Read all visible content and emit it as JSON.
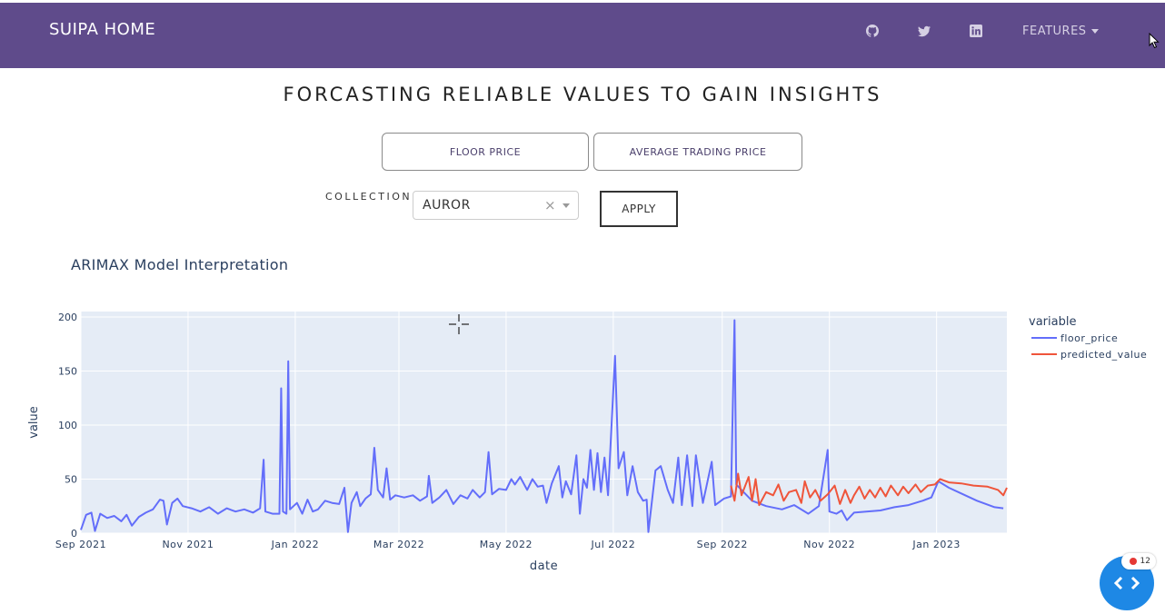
{
  "nav": {
    "brand": "SUIPA HOME",
    "icons": [
      "github-icon",
      "twitter-icon",
      "linkedin-icon"
    ],
    "features_label": "FEATURES",
    "background": "#5f4b8b"
  },
  "page": {
    "title": "FORCASTING RELIABLE VALUES TO GAIN INSIGHTS",
    "tabs": [
      "FLOOR PRICE",
      "AVERAGE TRADING PRICE"
    ],
    "collection_label": "COLLECTION",
    "collection_value": "AUROR",
    "clear_symbol": "×",
    "apply_label": "APPLY"
  },
  "chart": {
    "title": "ARIMAX Model Interpretation"
  },
  "chart_data": {
    "type": "line",
    "title": "ARIMAX Model Interpretation",
    "xlabel": "date",
    "ylabel": "value",
    "ylim": [
      0,
      205
    ],
    "yticks": [
      0,
      50,
      100,
      150,
      200
    ],
    "xlim": [
      "2021-09-01",
      "2023-02-10"
    ],
    "xticks": [
      "2021-09-01",
      "2021-11-01",
      "2022-01-01",
      "2022-03-01",
      "2022-05-01",
      "2022-07-01",
      "2022-09-01",
      "2022-11-01",
      "2023-01-01"
    ],
    "xtick_labels": [
      "Sep 2021",
      "Nov 2021",
      "Jan 2022",
      "Mar 2022",
      "May 2022",
      "Jul 2022",
      "Sep 2022",
      "Nov 2022",
      "Jan 2023"
    ],
    "legend_title": "variable",
    "legend_position": "right",
    "grid": true,
    "series": [
      {
        "name": "floor_price",
        "color": "#636efa",
        "points": [
          [
            "2021-09-01",
            3
          ],
          [
            "2021-09-04",
            17
          ],
          [
            "2021-09-07",
            19
          ],
          [
            "2021-09-09",
            2
          ],
          [
            "2021-09-12",
            18
          ],
          [
            "2021-09-16",
            14
          ],
          [
            "2021-09-20",
            16
          ],
          [
            "2021-09-24",
            11
          ],
          [
            "2021-09-27",
            17
          ],
          [
            "2021-09-30",
            7
          ],
          [
            "2021-10-04",
            15
          ],
          [
            "2021-10-08",
            19
          ],
          [
            "2021-10-12",
            22
          ],
          [
            "2021-10-16",
            31
          ],
          [
            "2021-10-18",
            30
          ],
          [
            "2021-10-20",
            8
          ],
          [
            "2021-10-23",
            28
          ],
          [
            "2021-10-26",
            32
          ],
          [
            "2021-10-29",
            25
          ],
          [
            "2021-11-03",
            23
          ],
          [
            "2021-11-08",
            20
          ],
          [
            "2021-11-13",
            24
          ],
          [
            "2021-11-18",
            18
          ],
          [
            "2021-11-23",
            23
          ],
          [
            "2021-11-28",
            20
          ],
          [
            "2021-12-03",
            22
          ],
          [
            "2021-12-08",
            19
          ],
          [
            "2021-12-12",
            23
          ],
          [
            "2021-12-14",
            68
          ],
          [
            "2021-12-15",
            20
          ],
          [
            "2021-12-19",
            18
          ],
          [
            "2021-12-23",
            18
          ],
          [
            "2021-12-24",
            134
          ],
          [
            "2021-12-25",
            20
          ],
          [
            "2021-12-27",
            18
          ],
          [
            "2021-12-28",
            159
          ],
          [
            "2021-12-29",
            22
          ],
          [
            "2022-01-02",
            28
          ],
          [
            "2022-01-05",
            18
          ],
          [
            "2022-01-08",
            31
          ],
          [
            "2022-01-11",
            20
          ],
          [
            "2022-01-14",
            22
          ],
          [
            "2022-01-18",
            30
          ],
          [
            "2022-01-22",
            28
          ],
          [
            "2022-01-26",
            27
          ],
          [
            "2022-01-29",
            42
          ],
          [
            "2022-01-31",
            1
          ],
          [
            "2022-02-02",
            28
          ],
          [
            "2022-02-05",
            38
          ],
          [
            "2022-02-07",
            25
          ],
          [
            "2022-02-10",
            32
          ],
          [
            "2022-02-13",
            36
          ],
          [
            "2022-02-15",
            79
          ],
          [
            "2022-02-17",
            40
          ],
          [
            "2022-02-20",
            33
          ],
          [
            "2022-02-22",
            60
          ],
          [
            "2022-02-24",
            31
          ],
          [
            "2022-02-27",
            35
          ],
          [
            "2022-03-04",
            33
          ],
          [
            "2022-03-09",
            35
          ],
          [
            "2022-03-13",
            30
          ],
          [
            "2022-03-17",
            34
          ],
          [
            "2022-03-18",
            53
          ],
          [
            "2022-03-20",
            28
          ],
          [
            "2022-03-24",
            33
          ],
          [
            "2022-03-28",
            40
          ],
          [
            "2022-04-01",
            27
          ],
          [
            "2022-04-05",
            35
          ],
          [
            "2022-04-09",
            32
          ],
          [
            "2022-04-12",
            40
          ],
          [
            "2022-04-16",
            33
          ],
          [
            "2022-04-19",
            38
          ],
          [
            "2022-04-21",
            75
          ],
          [
            "2022-04-23",
            36
          ],
          [
            "2022-04-27",
            41
          ],
          [
            "2022-05-01",
            40
          ],
          [
            "2022-05-04",
            50
          ],
          [
            "2022-05-06",
            45
          ],
          [
            "2022-05-09",
            52
          ],
          [
            "2022-05-13",
            40
          ],
          [
            "2022-05-16",
            50
          ],
          [
            "2022-05-19",
            43
          ],
          [
            "2022-05-22",
            44
          ],
          [
            "2022-05-24",
            28
          ],
          [
            "2022-05-27",
            46
          ],
          [
            "2022-05-31",
            62
          ],
          [
            "2022-06-02",
            33
          ],
          [
            "2022-06-04",
            48
          ],
          [
            "2022-06-07",
            36
          ],
          [
            "2022-06-10",
            72
          ],
          [
            "2022-06-12",
            18
          ],
          [
            "2022-06-14",
            50
          ],
          [
            "2022-06-16",
            42
          ],
          [
            "2022-06-18",
            77
          ],
          [
            "2022-06-20",
            40
          ],
          [
            "2022-06-22",
            74
          ],
          [
            "2022-06-24",
            38
          ],
          [
            "2022-06-26",
            70
          ],
          [
            "2022-06-28",
            35
          ],
          [
            "2022-07-02",
            164
          ],
          [
            "2022-07-04",
            60
          ],
          [
            "2022-07-07",
            75
          ],
          [
            "2022-07-09",
            35
          ],
          [
            "2022-07-12",
            62
          ],
          [
            "2022-07-15",
            38
          ],
          [
            "2022-07-18",
            30
          ],
          [
            "2022-07-20",
            31
          ],
          [
            "2022-07-21",
            1
          ],
          [
            "2022-07-25",
            58
          ],
          [
            "2022-07-28",
            62
          ],
          [
            "2022-08-01",
            40
          ],
          [
            "2022-08-04",
            28
          ],
          [
            "2022-08-07",
            70
          ],
          [
            "2022-08-09",
            26
          ],
          [
            "2022-08-12",
            72
          ],
          [
            "2022-08-15",
            25
          ],
          [
            "2022-08-17",
            72
          ],
          [
            "2022-08-21",
            28
          ],
          [
            "2022-08-26",
            66
          ],
          [
            "2022-08-28",
            26
          ],
          [
            "2022-09-02",
            32
          ],
          [
            "2022-09-06",
            34
          ],
          [
            "2022-09-08",
            197
          ],
          [
            "2022-09-09",
            45
          ],
          [
            "2022-09-12",
            40
          ],
          [
            "2022-09-18",
            30
          ],
          [
            "2022-09-26",
            25
          ],
          [
            "2022-10-05",
            22
          ],
          [
            "2022-10-12",
            26
          ],
          [
            "2022-10-20",
            18
          ],
          [
            "2022-10-26",
            25
          ],
          [
            "2022-10-31",
            77
          ],
          [
            "2022-11-01",
            20
          ],
          [
            "2022-11-05",
            18
          ],
          [
            "2022-11-08",
            21
          ],
          [
            "2022-11-11",
            12
          ],
          [
            "2022-11-15",
            19
          ],
          [
            "2022-11-22",
            20
          ],
          [
            "2022-11-30",
            21
          ],
          [
            "2022-12-08",
            24
          ],
          [
            "2022-12-16",
            26
          ],
          [
            "2022-12-24",
            30
          ],
          [
            "2022-12-29",
            33
          ],
          [
            "2023-01-02",
            48
          ],
          [
            "2023-01-08",
            42
          ],
          [
            "2023-01-16",
            36
          ],
          [
            "2023-01-24",
            30
          ],
          [
            "2023-02-03",
            24
          ],
          [
            "2023-02-08",
            23
          ]
        ]
      },
      {
        "name": "predicted_value",
        "color": "#ef553b",
        "points": [
          [
            "2022-09-06",
            44
          ],
          [
            "2022-09-08",
            30
          ],
          [
            "2022-09-10",
            55
          ],
          [
            "2022-09-12",
            35
          ],
          [
            "2022-09-16",
            52
          ],
          [
            "2022-09-18",
            30
          ],
          [
            "2022-09-20",
            50
          ],
          [
            "2022-09-22",
            26
          ],
          [
            "2022-09-26",
            38
          ],
          [
            "2022-09-30",
            35
          ],
          [
            "2022-10-03",
            45
          ],
          [
            "2022-10-06",
            30
          ],
          [
            "2022-10-09",
            38
          ],
          [
            "2022-10-13",
            40
          ],
          [
            "2022-10-16",
            28
          ],
          [
            "2022-10-18",
            48
          ],
          [
            "2022-10-21",
            33
          ],
          [
            "2022-10-24",
            40
          ],
          [
            "2022-10-27",
            30
          ],
          [
            "2022-10-31",
            36
          ],
          [
            "2022-11-04",
            44
          ],
          [
            "2022-11-07",
            27
          ],
          [
            "2022-11-10",
            40
          ],
          [
            "2022-11-13",
            28
          ],
          [
            "2022-11-15",
            35
          ],
          [
            "2022-11-18",
            43
          ],
          [
            "2022-11-21",
            32
          ],
          [
            "2022-11-24",
            40
          ],
          [
            "2022-11-27",
            33
          ],
          [
            "2022-11-30",
            42
          ],
          [
            "2022-12-03",
            34
          ],
          [
            "2022-12-06",
            44
          ],
          [
            "2022-12-10",
            35
          ],
          [
            "2022-12-13",
            43
          ],
          [
            "2022-12-16",
            37
          ],
          [
            "2022-12-20",
            45
          ],
          [
            "2022-12-23",
            38
          ],
          [
            "2022-12-27",
            44
          ],
          [
            "2022-12-31",
            45
          ],
          [
            "2023-01-03",
            50
          ],
          [
            "2023-01-08",
            47
          ],
          [
            "2023-01-15",
            46
          ],
          [
            "2023-01-22",
            44
          ],
          [
            "2023-01-30",
            43
          ],
          [
            "2023-02-05",
            40
          ],
          [
            "2023-02-08",
            35
          ],
          [
            "2023-02-10",
            42
          ]
        ]
      }
    ]
  },
  "widget": {
    "badge_count": "12"
  }
}
